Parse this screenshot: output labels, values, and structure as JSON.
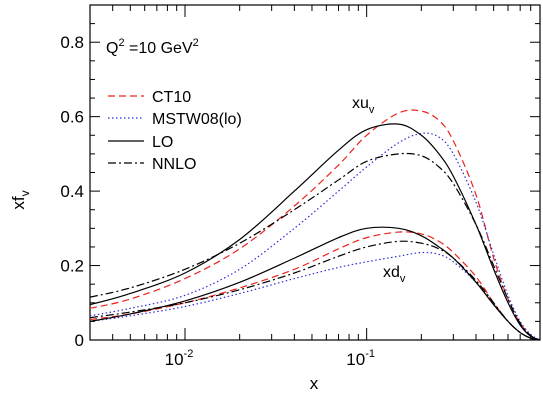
{
  "chart_data": {
    "type": "line",
    "title": "",
    "xlabel": "x",
    "ylabel": "xf_v",
    "ylabel_main": "xf",
    "ylabel_sub": "v",
    "x_scale": "log",
    "xlim": [
      0.003,
      0.9
    ],
    "ylim": [
      0,
      0.9
    ],
    "x_ticks": [
      {
        "base": "10",
        "exp": "-2",
        "value": 0.01
      },
      {
        "base": "10",
        "exp": "-1",
        "value": 0.1
      }
    ],
    "y_ticks": [
      {
        "label": "0",
        "value": 0
      },
      {
        "label": "0.2",
        "value": 0.2
      },
      {
        "label": "0.4",
        "value": 0.4
      },
      {
        "label": "0.6",
        "value": 0.6
      },
      {
        "label": "0.8",
        "value": 0.8
      }
    ],
    "grid": false,
    "legend_position": "top-left",
    "annotations": {
      "q2": {
        "Q": "Q",
        "sup1": "2",
        "mid": " =10 GeV",
        "sup2": "2"
      },
      "xu": {
        "main": "xu",
        "sub": "v"
      },
      "xd": {
        "main": "xd",
        "sub": "v"
      }
    },
    "series": [
      {
        "name": "CT10",
        "group": "xu_v",
        "color": "#e8231c",
        "dash": "7,4",
        "in_legend": true,
        "x": [
          0.003,
          0.005,
          0.01,
          0.02,
          0.04,
          0.07,
          0.1,
          0.15,
          0.2,
          0.25,
          0.3,
          0.4,
          0.5,
          0.6,
          0.7,
          0.8,
          0.9
        ],
        "y": [
          0.085,
          0.11,
          0.165,
          0.245,
          0.36,
          0.47,
          0.55,
          0.61,
          0.615,
          0.59,
          0.535,
          0.39,
          0.22,
          0.11,
          0.045,
          0.012,
          0.0
        ]
      },
      {
        "name": "MSTW08(lo)",
        "group": "xu_v",
        "color": "#2b2bd6",
        "dash": "1.5,2.5",
        "in_legend": true,
        "x": [
          0.003,
          0.005,
          0.01,
          0.02,
          0.04,
          0.07,
          0.1,
          0.15,
          0.2,
          0.25,
          0.3,
          0.4,
          0.5,
          0.6,
          0.7,
          0.8,
          0.9
        ],
        "y": [
          0.065,
          0.085,
          0.12,
          0.19,
          0.3,
          0.4,
          0.465,
          0.53,
          0.555,
          0.545,
          0.5,
          0.37,
          0.23,
          0.12,
          0.05,
          0.015,
          0.0
        ]
      },
      {
        "name": "LO",
        "group": "xu_v",
        "color": "#000000",
        "dash": "",
        "in_legend": true,
        "x": [
          0.003,
          0.005,
          0.01,
          0.02,
          0.04,
          0.07,
          0.1,
          0.15,
          0.2,
          0.25,
          0.3,
          0.4,
          0.5,
          0.6,
          0.7,
          0.8,
          0.9
        ],
        "y": [
          0.095,
          0.125,
          0.18,
          0.27,
          0.4,
          0.51,
          0.565,
          0.58,
          0.55,
          0.5,
          0.44,
          0.31,
          0.19,
          0.1,
          0.04,
          0.01,
          0.0
        ]
      },
      {
        "name": "NNLO",
        "group": "xu_v",
        "color": "#000000",
        "dash": "8,3,2,3",
        "in_legend": true,
        "x": [
          0.003,
          0.005,
          0.01,
          0.02,
          0.04,
          0.07,
          0.1,
          0.15,
          0.2,
          0.25,
          0.3,
          0.4,
          0.5,
          0.6,
          0.7,
          0.8,
          0.9
        ],
        "y": [
          0.115,
          0.14,
          0.19,
          0.26,
          0.35,
          0.43,
          0.48,
          0.5,
          0.495,
          0.465,
          0.42,
          0.31,
          0.2,
          0.11,
          0.045,
          0.012,
          0.0
        ]
      },
      {
        "name": "CT10",
        "group": "xd_v",
        "color": "#e8231c",
        "dash": "7,4",
        "in_legend": false,
        "x": [
          0.003,
          0.005,
          0.01,
          0.02,
          0.04,
          0.07,
          0.1,
          0.15,
          0.2,
          0.25,
          0.3,
          0.4,
          0.5,
          0.6,
          0.7,
          0.8,
          0.9
        ],
        "y": [
          0.055,
          0.07,
          0.1,
          0.14,
          0.19,
          0.245,
          0.275,
          0.29,
          0.285,
          0.265,
          0.235,
          0.17,
          0.1,
          0.05,
          0.02,
          0.005,
          0.0
        ]
      },
      {
        "name": "MSTW08(lo)",
        "group": "xd_v",
        "color": "#2b2bd6",
        "dash": "1.5,2.5",
        "in_legend": false,
        "x": [
          0.003,
          0.005,
          0.01,
          0.02,
          0.04,
          0.07,
          0.1,
          0.15,
          0.2,
          0.25,
          0.3,
          0.4,
          0.5,
          0.6,
          0.7,
          0.8,
          0.9
        ],
        "y": [
          0.05,
          0.065,
          0.09,
          0.125,
          0.165,
          0.195,
          0.21,
          0.225,
          0.235,
          0.23,
          0.21,
          0.155,
          0.095,
          0.05,
          0.02,
          0.005,
          0.0
        ]
      },
      {
        "name": "LO",
        "group": "xd_v",
        "color": "#000000",
        "dash": "",
        "in_legend": false,
        "x": [
          0.003,
          0.005,
          0.01,
          0.02,
          0.04,
          0.07,
          0.1,
          0.15,
          0.2,
          0.25,
          0.3,
          0.4,
          0.5,
          0.6,
          0.7,
          0.8,
          0.9
        ],
        "y": [
          0.05,
          0.07,
          0.105,
          0.155,
          0.22,
          0.275,
          0.3,
          0.3,
          0.28,
          0.25,
          0.22,
          0.155,
          0.095,
          0.05,
          0.02,
          0.005,
          0.0
        ]
      },
      {
        "name": "NNLO",
        "group": "xd_v",
        "color": "#000000",
        "dash": "8,3,2,3",
        "in_legend": false,
        "x": [
          0.003,
          0.005,
          0.01,
          0.02,
          0.04,
          0.07,
          0.1,
          0.15,
          0.2,
          0.25,
          0.3,
          0.4,
          0.5,
          0.6,
          0.7,
          0.8,
          0.9
        ],
        "y": [
          0.06,
          0.075,
          0.1,
          0.135,
          0.18,
          0.225,
          0.25,
          0.265,
          0.26,
          0.245,
          0.22,
          0.16,
          0.1,
          0.05,
          0.02,
          0.005,
          0.0
        ]
      }
    ]
  }
}
